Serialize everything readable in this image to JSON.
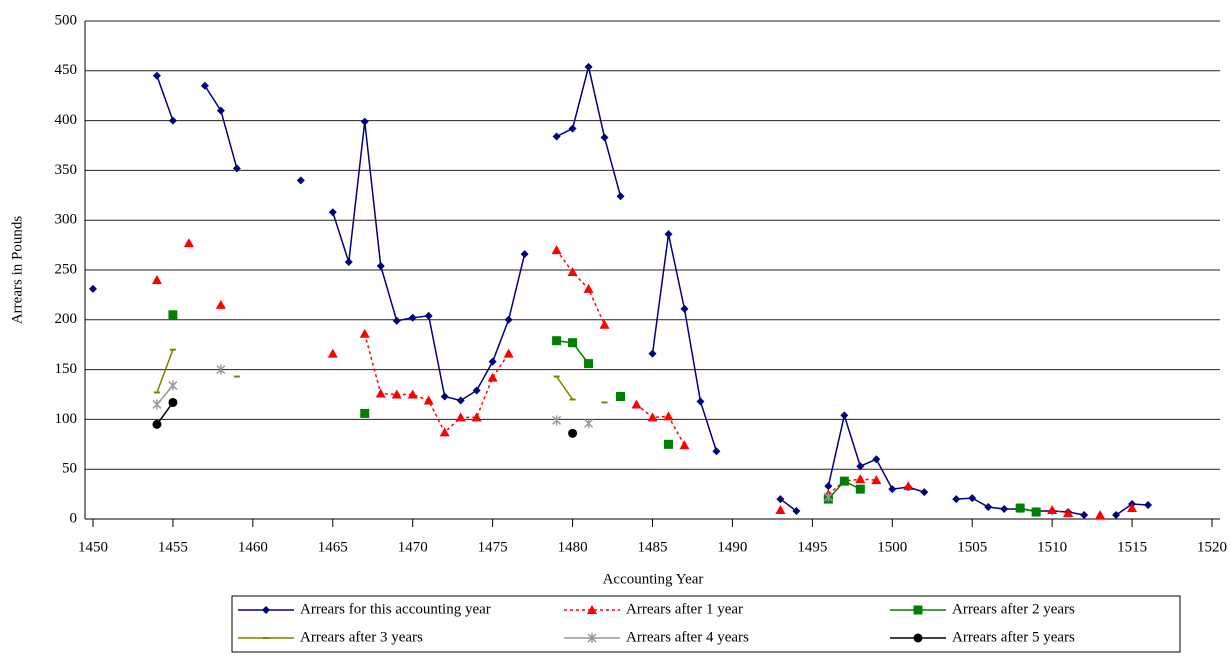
{
  "chart_data": {
    "type": "line",
    "x_label": "Accounting Year",
    "y_label": "Arrears in Pounds",
    "xlim": [
      1449.5,
      1520.5
    ],
    "xticks": [
      1450,
      1455,
      1460,
      1465,
      1470,
      1475,
      1480,
      1485,
      1490,
      1495,
      1500,
      1505,
      1510,
      1515,
      1520
    ],
    "ylim": [
      0,
      500
    ],
    "yticks": [
      0,
      50,
      100,
      150,
      200,
      250,
      300,
      350,
      400,
      450,
      500
    ],
    "grid": true,
    "legend": "bottom",
    "x": [
      1450,
      1451,
      1452,
      1453,
      1454,
      1455,
      1456,
      1457,
      1458,
      1459,
      1460,
      1461,
      1462,
      1463,
      1464,
      1465,
      1466,
      1467,
      1468,
      1469,
      1470,
      1471,
      1472,
      1473,
      1474,
      1475,
      1476,
      1477,
      1478,
      1479,
      1480,
      1481,
      1482,
      1483,
      1484,
      1485,
      1486,
      1487,
      1488,
      1489,
      1490,
      1491,
      1492,
      1493,
      1494,
      1495,
      1496,
      1497,
      1498,
      1499,
      1500,
      1501,
      1502,
      1503,
      1504,
      1505,
      1506,
      1507,
      1508,
      1509,
      1510,
      1511,
      1512,
      1513,
      1514,
      1515,
      1516
    ],
    "series": [
      {
        "name": "Arrears for this accounting year",
        "color": "#000080",
        "marker": "diamond",
        "line_style": "solid",
        "values": [
          231,
          null,
          null,
          null,
          445,
          400,
          null,
          435,
          410,
          352,
          null,
          null,
          null,
          340,
          null,
          308,
          258,
          399,
          254,
          199,
          202,
          204,
          123,
          119,
          129,
          158,
          200,
          266,
          null,
          384,
          392,
          454,
          383,
          324,
          null,
          166,
          286,
          211,
          118,
          68,
          null,
          null,
          null,
          20,
          8,
          null,
          33,
          104,
          53,
          60,
          30,
          32,
          27,
          null,
          20,
          21,
          12,
          10,
          10,
          8,
          8,
          7,
          4,
          null,
          4,
          15,
          14
        ]
      },
      {
        "name": "Arrears after 1 year",
        "color": "#ff0000",
        "marker": "triangle",
        "line_style": "dotted",
        "values": [
          null,
          null,
          null,
          null,
          240,
          null,
          277,
          null,
          215,
          null,
          null,
          null,
          null,
          null,
          null,
          166,
          null,
          186,
          126,
          125,
          125,
          119,
          87,
          102,
          102,
          142,
          166,
          null,
          null,
          270,
          248,
          231,
          195,
          null,
          115,
          102,
          103,
          74,
          null,
          null,
          null,
          null,
          null,
          9,
          null,
          null,
          25,
          38,
          40,
          39,
          null,
          33,
          null,
          null,
          null,
          null,
          null,
          null,
          null,
          null,
          9,
          6,
          null,
          4,
          null,
          11,
          null
        ]
      },
      {
        "name": "Arrears after 2 years",
        "color": "#008000",
        "marker": "square",
        "line_style": "solid",
        "values": [
          null,
          null,
          null,
          null,
          null,
          205,
          null,
          null,
          null,
          null,
          null,
          null,
          null,
          null,
          null,
          null,
          null,
          106,
          null,
          null,
          null,
          null,
          null,
          null,
          null,
          null,
          null,
          null,
          null,
          179,
          177,
          156,
          null,
          123,
          null,
          null,
          75,
          null,
          null,
          null,
          null,
          null,
          null,
          null,
          null,
          null,
          20,
          38,
          30,
          null,
          null,
          null,
          null,
          null,
          null,
          null,
          null,
          null,
          11,
          7,
          null,
          null,
          null,
          null,
          null,
          null,
          null
        ]
      },
      {
        "name": "Arrears after 3 years",
        "color": "#808000",
        "marker": "dash",
        "line_style": "solid",
        "values": [
          null,
          null,
          null,
          null,
          127,
          170,
          null,
          null,
          null,
          143,
          null,
          null,
          null,
          null,
          null,
          null,
          null,
          null,
          null,
          null,
          null,
          null,
          null,
          null,
          null,
          null,
          null,
          null,
          null,
          143,
          120,
          null,
          117,
          null,
          null,
          null,
          null,
          null,
          null,
          null,
          null,
          null,
          null,
          null,
          null,
          null,
          null,
          null,
          null,
          null,
          null,
          null,
          null,
          null,
          null,
          null,
          null,
          null,
          null,
          null,
          null,
          null,
          null,
          null,
          null,
          null,
          null
        ]
      },
      {
        "name": "Arrears after 4 years",
        "color": "#999999",
        "marker": "star",
        "line_style": "solid",
        "values": [
          null,
          null,
          null,
          null,
          115,
          134,
          null,
          null,
          150,
          null,
          null,
          null,
          null,
          null,
          null,
          null,
          null,
          null,
          null,
          null,
          null,
          null,
          null,
          null,
          null,
          null,
          null,
          null,
          null,
          99,
          null,
          96,
          null,
          null,
          null,
          null,
          null,
          null,
          null,
          null,
          null,
          null,
          null,
          null,
          null,
          null,
          22,
          null,
          null,
          null,
          null,
          null,
          null,
          null,
          null,
          null,
          null,
          null,
          null,
          null,
          null,
          null,
          null,
          null,
          null,
          null,
          null
        ]
      },
      {
        "name": "Arrears after 5 years",
        "color": "#000000",
        "marker": "circle",
        "line_style": "solid",
        "values": [
          null,
          null,
          null,
          null,
          95,
          117,
          null,
          null,
          null,
          null,
          null,
          null,
          null,
          null,
          null,
          null,
          null,
          null,
          null,
          null,
          null,
          null,
          null,
          null,
          null,
          null,
          null,
          null,
          null,
          null,
          86,
          null,
          null,
          null,
          null,
          null,
          null,
          null,
          null,
          null,
          null,
          null,
          null,
          null,
          null,
          null,
          null,
          null,
          null,
          null,
          null,
          null,
          null,
          null,
          null,
          null,
          null,
          null,
          null,
          null,
          null,
          null,
          null,
          null,
          null,
          null,
          null
        ]
      }
    ]
  }
}
